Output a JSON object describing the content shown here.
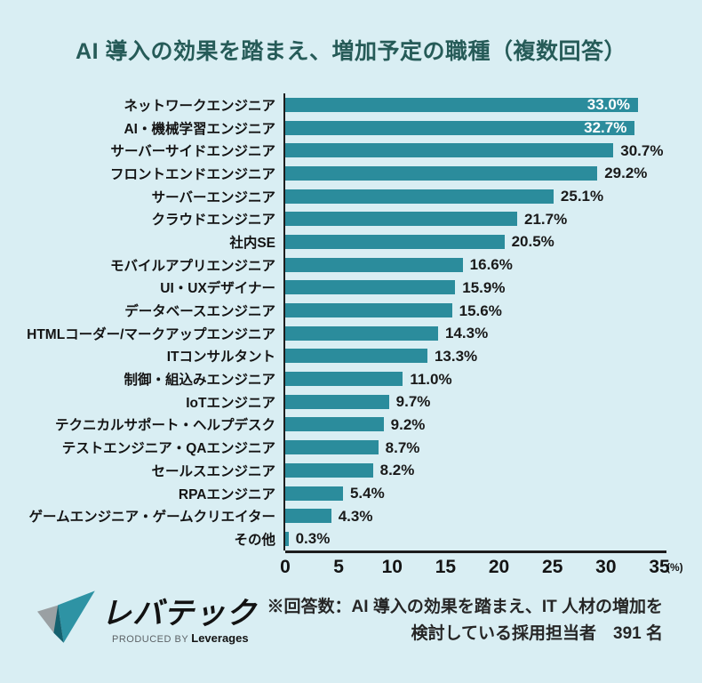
{
  "title": "AI 導入の効果を踏まえ、増加予定の職種（複数回答）",
  "chart_data": {
    "type": "bar",
    "orientation": "horizontal",
    "title": "AI 導入の効果を踏まえ、増加予定の職種（複数回答）",
    "categories": [
      "ネットワークエンジニア",
      "AI・機械学習エンジニア",
      "サーバーサイドエンジニア",
      "フロントエンドエンジニア",
      "サーバーエンジニア",
      "クラウドエンジニア",
      "社内SE",
      "モバイルアプリエンジニア",
      "UI・UXデザイナー",
      "データベースエンジニア",
      "HTMLコーダー/マークアップエンジニア",
      "ITコンサルタント",
      "制御・組込みエンジニア",
      "IoTエンジニア",
      "テクニカルサポート・ヘルプデスク",
      "テストエンジニア・QAエンジニア",
      "セールスエンジニア",
      "RPAエンジニア",
      "ゲームエンジニア・ゲームクリエイター",
      "その他"
    ],
    "values": [
      33.0,
      32.7,
      30.7,
      29.2,
      25.1,
      21.7,
      20.5,
      16.6,
      15.9,
      15.6,
      14.3,
      13.3,
      11.0,
      9.7,
      9.2,
      8.7,
      8.2,
      5.4,
      4.3,
      0.3
    ],
    "value_labels": [
      "33.0%",
      "32.7%",
      "30.7%",
      "29.2%",
      "25.1%",
      "21.7%",
      "20.5%",
      "16.6%",
      "15.9%",
      "15.6%",
      "14.3%",
      "13.3%",
      "11.0%",
      "9.7%",
      "9.2%",
      "8.7%",
      "8.2%",
      "5.4%",
      "4.3%",
      "0.3%"
    ],
    "label_inside_bar": [
      true,
      true,
      false,
      false,
      false,
      false,
      false,
      false,
      false,
      false,
      false,
      false,
      false,
      false,
      false,
      false,
      false,
      false,
      false,
      false
    ],
    "x_ticks": [
      0,
      5,
      10,
      15,
      20,
      25,
      30,
      35
    ],
    "x_unit": "(%)",
    "xlim": [
      0,
      35
    ],
    "bar_color": "#2b8c9c",
    "grid": "off",
    "legend": "none"
  },
  "footer": {
    "logo": {
      "name": "レバテック",
      "produced_by": "PRODUCED BY",
      "company": "Leverages"
    },
    "note_lines": [
      "※回答数：AI 導入の効果を踏まえ、IT 人材の増加を",
      "検討している採用担当者　391 名"
    ]
  },
  "colors": {
    "background": "#d9eef3",
    "bar": "#2b8c9c",
    "title": "#265b58",
    "text": "#141414",
    "value_inside": "#ffffff",
    "axis": "#1d1d1d"
  }
}
